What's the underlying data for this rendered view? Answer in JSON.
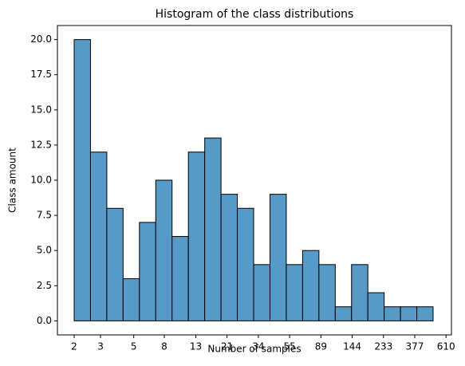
{
  "chart_data": {
    "type": "histogram",
    "title": "Histogram of the class distributions",
    "x_label": "Number of samples",
    "y_label": "Class amount",
    "bins": [
      2.0,
      2.571,
      3.304,
      4.246,
      5.458,
      7.015,
      9.016,
      11.59,
      14.9,
      19.15,
      24.61,
      31.63,
      40.66,
      52.26,
      67.17,
      86.33,
      111.0,
      142.6,
      183.3,
      235.6,
      302.8,
      389.2,
      500.0
    ],
    "values": [
      20,
      12,
      8,
      3,
      7,
      10,
      6,
      12,
      13,
      9,
      8,
      4,
      9,
      4,
      5,
      4,
      1,
      4,
      2,
      1,
      1,
      1
    ],
    "color": "#5799c7",
    "xscale": "log",
    "xlim": [
      1.546,
      663
    ],
    "xticks": [
      2,
      3,
      5,
      8,
      13,
      21,
      34,
      55,
      89,
      144,
      233,
      377,
      610
    ],
    "ylim": [
      -1.0,
      21.0
    ],
    "yticks": [
      {
        "value": 0,
        "label": "0.0"
      },
      {
        "value": 2.5,
        "label": "2.5"
      },
      {
        "value": 5,
        "label": "5.0"
      },
      {
        "value": 7.5,
        "label": "7.5"
      },
      {
        "value": 10,
        "label": "10.0"
      },
      {
        "value": 12.5,
        "label": "12.5"
      },
      {
        "value": 15,
        "label": "15.0"
      },
      {
        "value": 17.5,
        "label": "17.5"
      },
      {
        "value": 20,
        "label": "20.0"
      }
    ]
  }
}
